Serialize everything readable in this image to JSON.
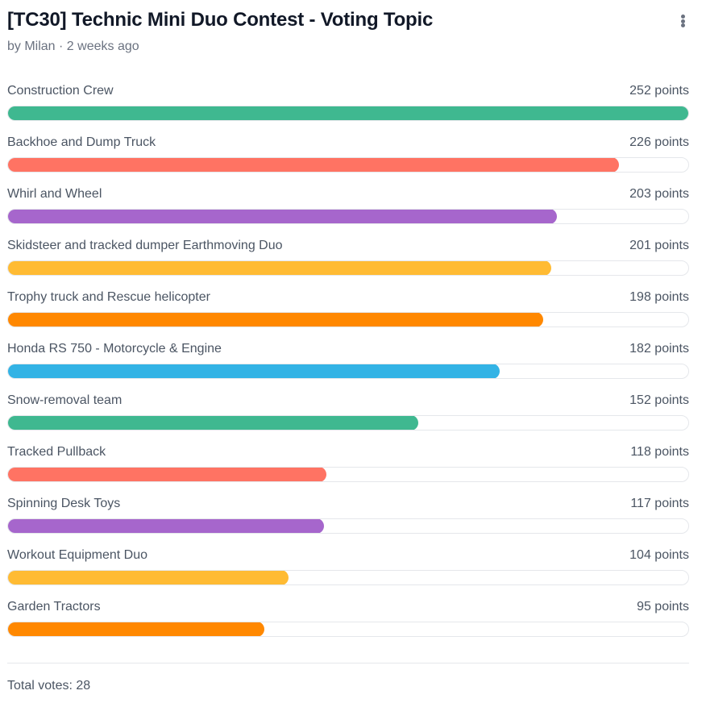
{
  "header": {
    "title": "[TC30] Technic Mini Duo Contest - Voting Topic",
    "meta": "by Milan · 2 weeks ago",
    "menu_icon": "more-vertical-icon"
  },
  "options": [
    {
      "label": "Construction Crew",
      "points": 252,
      "points_label": "252 points",
      "color": "#3fb890"
    },
    {
      "label": "Backhoe and Dump Truck",
      "points": 226,
      "points_label": "226 points",
      "color": "#ff7363"
    },
    {
      "label": "Whirl and Wheel",
      "points": 203,
      "points_label": "203 points",
      "color": "#a666cc"
    },
    {
      "label": "Skidsteer and tracked dumper Earthmoving Duo",
      "points": 201,
      "points_label": "201 points",
      "color": "#ffbb33"
    },
    {
      "label": "Trophy truck and Rescue helicopter",
      "points": 198,
      "points_label": "198 points",
      "color": "#ff8800"
    },
    {
      "label": "Honda RS 750 - Motorcycle & Engine",
      "points": 182,
      "points_label": "182 points",
      "color": "#33b3e5"
    },
    {
      "label": "Snow-removal team",
      "points": 152,
      "points_label": "152 points",
      "color": "#3fb890"
    },
    {
      "label": "Tracked Pullback",
      "points": 118,
      "points_label": "118 points",
      "color": "#ff7363"
    },
    {
      "label": "Spinning Desk Toys",
      "points": 117,
      "points_label": "117 points",
      "color": "#a666cc"
    },
    {
      "label": "Workout Equipment Duo",
      "points": 104,
      "points_label": "104 points",
      "color": "#ffbb33"
    },
    {
      "label": "Garden Tractors",
      "points": 95,
      "points_label": "95 points",
      "color": "#ff8800"
    }
  ],
  "footer": {
    "total": "Total votes: 28"
  },
  "chart_data": {
    "type": "bar",
    "orientation": "horizontal",
    "title": "[TC30] Technic Mini Duo Contest - Voting Topic",
    "subtitle": "by Milan · 2 weeks ago",
    "categories": [
      "Construction Crew",
      "Backhoe and Dump Truck",
      "Whirl and Wheel",
      "Skidsteer and tracked dumper Earthmoving Duo",
      "Trophy truck and Rescue helicopter",
      "Honda RS 750 - Motorcycle & Engine",
      "Snow-removal team",
      "Tracked Pullback",
      "Spinning Desk Toys",
      "Workout Equipment Duo",
      "Garden Tractors"
    ],
    "values": [
      252,
      226,
      203,
      201,
      198,
      182,
      152,
      118,
      117,
      104,
      95
    ],
    "xlabel": "points",
    "ylabel": "",
    "xlim": [
      0,
      252
    ],
    "grid": false,
    "legend": null,
    "annotation": "Total votes: 28"
  }
}
